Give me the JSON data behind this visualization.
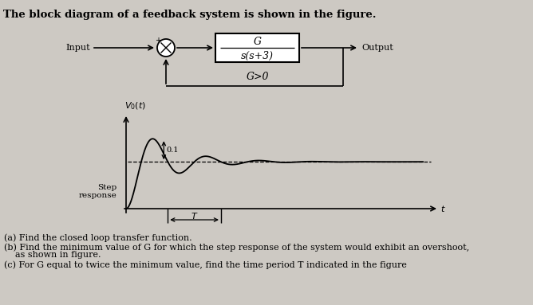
{
  "title": "The block diagram of a feedback system is shown in the figure.",
  "bg_color": "#cdc9c3",
  "block_label_num": "G",
  "block_label_den": "s(s+3)",
  "g_condition": "G>0",
  "input_label": "Input",
  "output_label": "Output",
  "step_label": "Step\nresponse",
  "T_label": "T",
  "overshoot_label": "0.1",
  "questions": [
    "(a) Find the closed loop transfer function.",
    "(b) Find the minimum value of G for which the step response of the system would exhibit an overshoot,",
    "    as shown in figure.",
    "(c) For G equal to twice the minimum value, find the time period T indicated in the figure"
  ],
  "zeta": 0.22,
  "wn": 4.0,
  "t_max": 9.0
}
